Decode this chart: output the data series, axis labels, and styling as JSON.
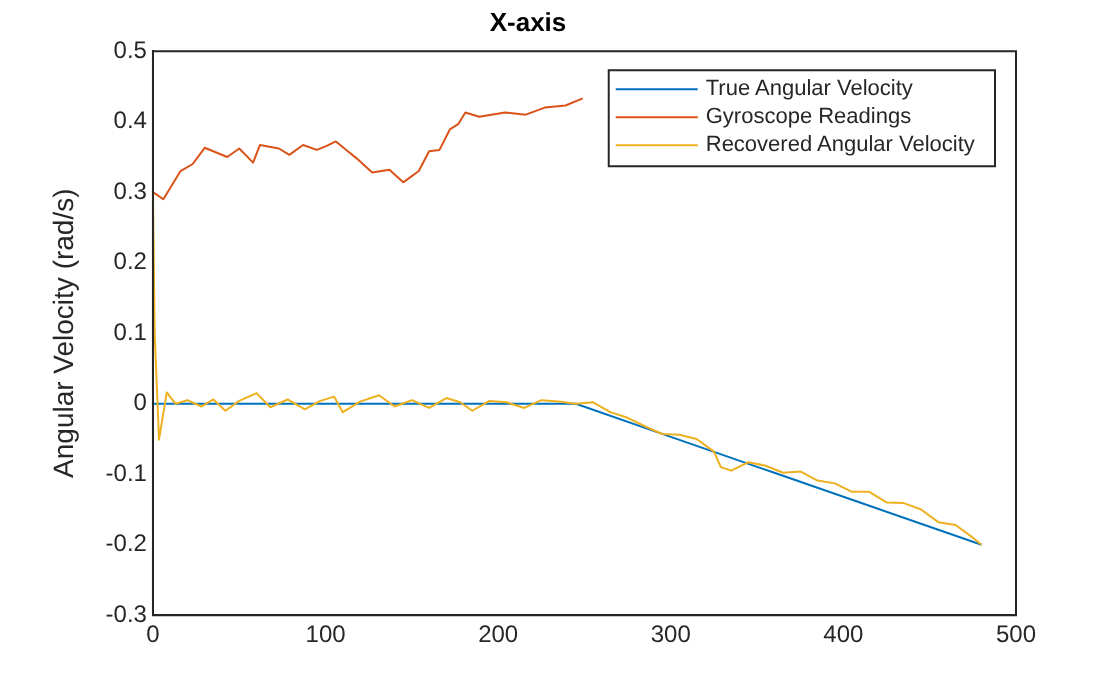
{
  "chart_data": {
    "type": "line",
    "title": "X-axis",
    "ylabel": "Angular Velocity (rad/s)",
    "xlim": [
      0,
      500
    ],
    "xticks": [
      0,
      100,
      200,
      300,
      400,
      500
    ],
    "ylim": [
      -0.3,
      0.5
    ],
    "yticks": [
      -0.3,
      -0.2,
      -0.1,
      0,
      0.1,
      0.2,
      0.3,
      0.4,
      0.5
    ],
    "grid": false,
    "legend": "top right",
    "series": [
      {
        "name": "True Angular Velocity",
        "color": "#0072bd",
        "x": [
          0,
          245,
          300,
          360,
          420,
          480
        ],
        "values": [
          0,
          0,
          -0.047,
          -0.098,
          -0.149,
          -0.2
        ]
      },
      {
        "name": "Gyroscope Readings",
        "color": "#d95319",
        "x": [
          0,
          6,
          16,
          23,
          30,
          36,
          43,
          50,
          58,
          62,
          73,
          79,
          87,
          95,
          100,
          106,
          112,
          118,
          127,
          137,
          145,
          154,
          160,
          166,
          172,
          177,
          181,
          189,
          204,
          216,
          227,
          239,
          249
        ],
        "values": [
          0.3,
          0.29,
          0.33,
          0.34,
          0.363,
          0.357,
          0.35,
          0.362,
          0.342,
          0.367,
          0.362,
          0.353,
          0.367,
          0.36,
          0.365,
          0.372,
          0.36,
          0.348,
          0.328,
          0.332,
          0.314,
          0.33,
          0.358,
          0.36,
          0.389,
          0.397,
          0.413,
          0.407,
          0.413,
          0.41,
          0.42,
          0.423,
          0.433
        ]
      },
      {
        "name": "Recovered Angular Velocity",
        "color": "#edb120",
        "x": [
          0,
          1,
          3.5,
          8,
          13,
          20,
          28,
          35,
          42,
          50,
          60,
          68,
          78,
          88,
          97,
          105,
          110,
          120,
          131,
          140,
          150,
          160,
          170,
          178,
          185,
          195,
          205,
          215,
          225,
          235,
          245,
          255,
          265,
          275,
          285,
          295,
          305,
          315,
          325,
          329,
          335,
          345,
          355,
          365,
          375,
          385,
          395,
          405,
          415,
          425,
          435,
          445,
          455,
          465,
          475,
          480
        ],
        "values": [
          0.3,
          0.1,
          -0.051,
          0.016,
          0,
          0.005,
          -0.004,
          0.006,
          -0.01,
          0.004,
          0.015,
          -0.005,
          0.006,
          -0.008,
          0.004,
          0.01,
          -0.012,
          0.003,
          0.012,
          -0.004,
          0.005,
          -0.006,
          0.008,
          0.002,
          -0.01,
          0.004,
          0.002,
          -0.006,
          0.005,
          0.003,
          0,
          0.002,
          -0.012,
          -0.02,
          -0.032,
          -0.043,
          -0.044,
          -0.05,
          -0.068,
          -0.09,
          -0.095,
          -0.083,
          -0.088,
          -0.098,
          -0.096,
          -0.109,
          -0.113,
          -0.125,
          -0.125,
          -0.14,
          -0.141,
          -0.15,
          -0.168,
          -0.172,
          -0.19,
          -0.2
        ]
      }
    ]
  }
}
